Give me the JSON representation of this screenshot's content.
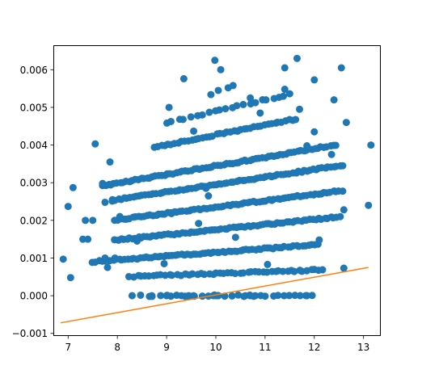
{
  "chart_data": {
    "type": "scatter",
    "title": "",
    "xlabel": "",
    "ylabel": "",
    "xlim": [
      6.7,
      13.35
    ],
    "ylim": [
      -0.00107,
      0.00665
    ],
    "grid": false,
    "x_ticks": [
      7,
      8,
      9,
      10,
      11,
      12,
      13
    ],
    "x_tick_labels": [
      "7",
      "8",
      "9",
      "10",
      "11",
      "12",
      "13"
    ],
    "y_ticks": [
      -0.001,
      0.0,
      0.001,
      0.002,
      0.003,
      0.004,
      0.005,
      0.006
    ],
    "y_tick_labels": [
      "−0.001",
      "0.000",
      "0.001",
      "0.002",
      "0.003",
      "0.004",
      "0.005",
      "0.006"
    ],
    "series": [
      {
        "kind": "scatter",
        "color": "#1f77b4",
        "bands": [
          {
            "y0": 0.0,
            "slope": 0.0,
            "x_range": [
              8.5,
              12.0
            ],
            "step": 0.12
          },
          {
            "y0": 0.00052,
            "slope": 4.5e-05,
            "x_range": [
              8.25,
              12.2
            ],
            "step": 0.08
          },
          {
            "y0": 0.001,
            "slope": 0.0001,
            "x_range": [
              7.5,
              12.1
            ],
            "step": 0.06
          },
          {
            "y0": 0.00155,
            "slope": 0.000135,
            "x_range": [
              7.95,
              12.55
            ],
            "step": 0.06
          },
          {
            "y0": 0.0021,
            "slope": 0.00017,
            "x_range": [
              7.95,
              12.6
            ],
            "step": 0.06
          },
          {
            "y0": 0.00265,
            "slope": 0.0002,
            "x_range": [
              7.9,
              12.6
            ],
            "step": 0.06
          },
          {
            "y0": 0.0031,
            "slope": 0.00023,
            "x_range": [
              7.7,
              12.45
            ],
            "step": 0.06
          },
          {
            "y0": 0.00388,
            "slope": 0.00026,
            "x_range": [
              8.75,
              11.65
            ],
            "step": 0.07
          },
          {
            "y0": 0.00445,
            "slope": 0.0003,
            "x_range": [
              9.0,
              11.6
            ],
            "step": 0.12
          }
        ],
        "points": [
          [
            6.9,
            0.00097
          ],
          [
            7.0,
            0.00237
          ],
          [
            7.05,
            0.00048
          ],
          [
            7.1,
            0.00287
          ],
          [
            7.3,
            0.0015
          ],
          [
            7.35,
            0.002
          ],
          [
            7.4,
            0.0015
          ],
          [
            7.5,
            0.002
          ],
          [
            7.55,
            0.00403
          ],
          [
            7.7,
            0.00298
          ],
          [
            7.75,
            0.00248
          ],
          [
            7.75,
            0.001
          ],
          [
            7.8,
            0.00075
          ],
          [
            7.85,
            0.00355
          ],
          [
            7.95,
            0.001
          ],
          [
            7.9,
            0.00255
          ],
          [
            8.05,
            0.0021
          ],
          [
            8.3,
            0.0
          ],
          [
            8.4,
            0.00145
          ],
          [
            8.7,
            0.0
          ],
          [
            8.95,
            0.00085
          ],
          [
            9.05,
            0.005
          ],
          [
            9.0,
            0.0
          ],
          [
            9.1,
            0.00218
          ],
          [
            9.3,
            0.0
          ],
          [
            9.35,
            0.00576
          ],
          [
            9.45,
            0.0
          ],
          [
            9.55,
            0.0
          ],
          [
            9.55,
            0.00437
          ],
          [
            9.65,
            0.00192
          ],
          [
            9.8,
            0.00285
          ],
          [
            9.85,
            0.00265
          ],
          [
            9.9,
            0.00534
          ],
          [
            9.95,
            0.0
          ],
          [
            9.98,
            0.00625
          ],
          [
            10.0,
            0.0
          ],
          [
            10.05,
            0.0
          ],
          [
            10.1,
            0.006
          ],
          [
            10.05,
            0.00545
          ],
          [
            10.25,
            0.00552
          ],
          [
            10.35,
            0.00558
          ],
          [
            10.4,
            0.00155
          ],
          [
            10.6,
            0.0
          ],
          [
            10.7,
            0.00525
          ],
          [
            10.7,
            0.0
          ],
          [
            10.8,
            0.0
          ],
          [
            10.9,
            0.00485
          ],
          [
            11.05,
            0.00083
          ],
          [
            11.4,
            0.00605
          ],
          [
            11.4,
            0.00548
          ],
          [
            11.65,
            0.0063
          ],
          [
            11.7,
            0.00495
          ],
          [
            11.85,
            0.0
          ],
          [
            11.85,
            0.00398
          ],
          [
            12.0,
            0.00573
          ],
          [
            12.0,
            0.00435
          ],
          [
            12.1,
            0.00148
          ],
          [
            12.35,
            0.00375
          ],
          [
            12.4,
            0.0052
          ],
          [
            12.55,
            0.00605
          ],
          [
            12.6,
            0.00228
          ],
          [
            12.6,
            0.00073
          ],
          [
            12.65,
            0.0046
          ],
          [
            13.1,
            0.0024
          ],
          [
            13.15,
            0.004
          ]
        ]
      },
      {
        "kind": "line",
        "color": "#ff7f0e",
        "x": [
          6.85,
          13.1
        ],
        "y": [
          -0.00072,
          0.00075
        ]
      }
    ]
  }
}
